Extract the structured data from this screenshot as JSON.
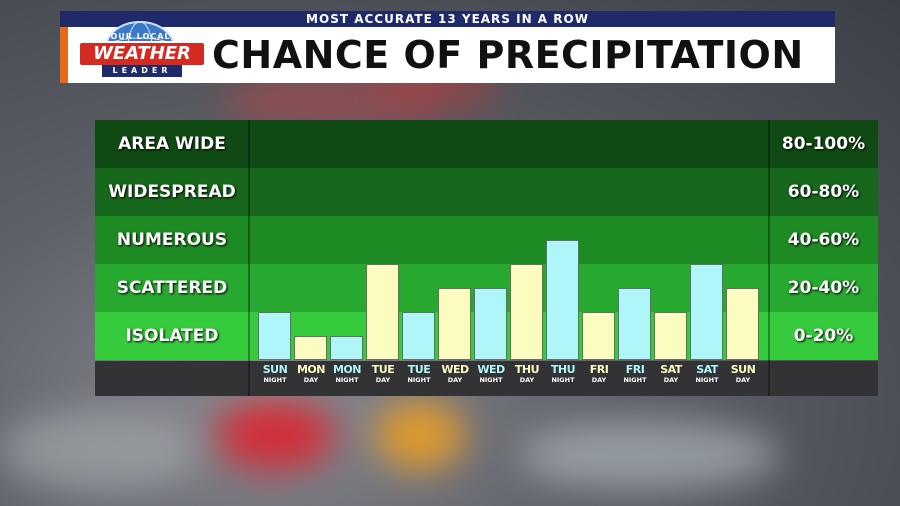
{
  "banner": {
    "top_text": "MOST ACCURATE 13 YEARS IN A ROW",
    "title": "CHANCE OF PRECIPITATION"
  },
  "logo": {
    "line1": "YOUR LOCAL",
    "line2": "WEATHER",
    "line3": "LEADER"
  },
  "colors": {
    "night_bar": "#aef6f8",
    "day_bar": "#fdfcc0",
    "row_bands": [
      "#0f4a14",
      "#17671d",
      "#1e8a24",
      "#27a82e",
      "#36cb3c"
    ],
    "header_blue": "#1f2a6b",
    "accent_orange": "#e86a18"
  },
  "chart_data": {
    "type": "bar",
    "title": "CHANCE OF PRECIPITATION",
    "categories": [
      "SUN NIGHT",
      "MON DAY",
      "MON NIGHT",
      "TUE DAY",
      "TUE NIGHT",
      "WED DAY",
      "WED NIGHT",
      "THU DAY",
      "THU NIGHT",
      "FRI DAY",
      "FRI NIGHT",
      "SAT DAY",
      "SAT NIGHT",
      "SUN DAY"
    ],
    "days": [
      "SUN",
      "MON",
      "MON",
      "TUE",
      "TUE",
      "WED",
      "WED",
      "THU",
      "THU",
      "FRI",
      "FRI",
      "SAT",
      "SAT",
      "SUN"
    ],
    "periods": [
      "NIGHT",
      "DAY",
      "NIGHT",
      "DAY",
      "NIGHT",
      "DAY",
      "NIGHT",
      "DAY",
      "NIGHT",
      "DAY",
      "NIGHT",
      "DAY",
      "NIGHT",
      "DAY"
    ],
    "values": [
      20,
      10,
      10,
      40,
      20,
      30,
      30,
      40,
      50,
      20,
      30,
      20,
      40,
      30
    ],
    "ylim": [
      0,
      100
    ],
    "categories_levels": [
      {
        "label": "AREA WIDE",
        "range": "80-100%"
      },
      {
        "label": "WIDESPREAD",
        "range": "60-80%"
      },
      {
        "label": "NUMEROUS",
        "range": "40-60%"
      },
      {
        "label": "SCATTERED",
        "range": "20-40%"
      },
      {
        "label": "ISOLATED",
        "range": "0-20%"
      }
    ]
  }
}
